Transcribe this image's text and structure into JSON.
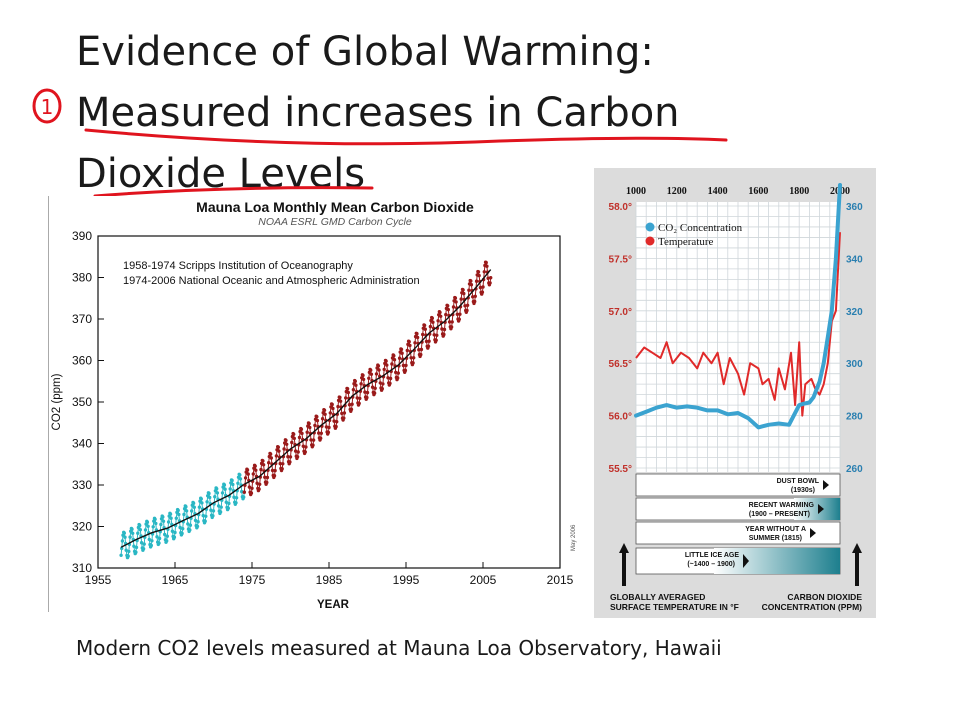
{
  "slide": {
    "title_line1": "Evidence of Global Warming:",
    "title_line2": "Measured increases in Carbon",
    "title_line3": "Dioxide Levels",
    "annotation_number": "1",
    "caption": "Modern CO2 levels measured at Mauna Loa Observatory, Hawaii"
  },
  "colors": {
    "annotation_red": "#e0141e",
    "scripps_series": "#2ab7c4",
    "noaa_series": "#9a1a1a",
    "co2_line": "#3ba3d0",
    "temp_line": "#e02a2a",
    "right_axis_text": "#c0302a",
    "right_axis_blue": "#2a7fb0"
  },
  "chart_data": [
    {
      "type": "line",
      "title": "Mauna Loa Monthly Mean Carbon Dioxide",
      "subtitle": "NOAA ESRL GMD Carbon Cycle",
      "xlabel": "YEAR",
      "ylabel": "CO2 (ppm)",
      "xlim": [
        1955,
        2015
      ],
      "ylim": [
        310,
        390
      ],
      "x_ticks": [
        1955,
        1965,
        1975,
        1985,
        1995,
        2005,
        2015
      ],
      "y_ticks": [
        310,
        320,
        330,
        340,
        350,
        360,
        370,
        380,
        390
      ],
      "annotations": [
        "1958-1974 Scripps Institution of Oceanography",
        "1974-2006 National Oceanic and Atmospheric Administration"
      ],
      "side_note": "May 2006",
      "grid": false,
      "series": [
        {
          "x": [
            1958,
            1960,
            1962,
            1964,
            1966,
            1968,
            1970,
            1972,
            1974
          ],
          "values": [
            315.0,
            316.9,
            318.5,
            319.6,
            321.4,
            323.1,
            325.7,
            327.5,
            330.2
          ]
        },
        {
          "x": [
            1974,
            1976,
            1978,
            1980,
            1982,
            1984,
            1986,
            1988,
            1990,
            1992,
            1994,
            1996,
            1998,
            2000,
            2002,
            2004,
            2006
          ],
          "values": [
            330.2,
            332.1,
            335.4,
            338.7,
            341.1,
            344.4,
            347.2,
            351.4,
            354.2,
            356.3,
            358.9,
            362.6,
            366.6,
            369.4,
            373.1,
            377.4,
            381.9
          ]
        }
      ],
      "seasonal_amplitude_ppm": 3.3
    },
    {
      "type": "line",
      "xlim": [
        1000,
        2000
      ],
      "x_ticks": [
        1000,
        1200,
        1400,
        1600,
        1800,
        2000
      ],
      "left_axis": {
        "label": "GLOBALLY AVERAGED SURFACE TEMPERATURE IN °F",
        "ticks": [
          "55.5°",
          "56.0°",
          "56.5°",
          "57.0°",
          "57.5°",
          "58.0°"
        ],
        "ylim": [
          55.5,
          58.0
        ]
      },
      "right_axis": {
        "label": "CARBON DIOXIDE CONCENTRATION (PPM)",
        "ticks": [
          "260",
          "280",
          "300",
          "320",
          "340",
          "360"
        ],
        "ylim": [
          260,
          360
        ]
      },
      "legend": {
        "placement": "top-left",
        "entries": [
          "CO₂ Concentration",
          "Temperature"
        ]
      },
      "series": [
        {
          "name": "CO₂ Concentration",
          "axis": "right",
          "x": [
            1000,
            1050,
            1100,
            1150,
            1200,
            1250,
            1300,
            1350,
            1400,
            1450,
            1500,
            1550,
            1600,
            1650,
            1700,
            1750,
            1800,
            1820,
            1850,
            1870,
            1900,
            1920,
            1940,
            1960,
            1980,
            2000
          ],
          "values": [
            280,
            281.5,
            283,
            284,
            283,
            283.5,
            283,
            282,
            282,
            280.5,
            281,
            279,
            275.5,
            276.5,
            277,
            276.5,
            284,
            284.5,
            285,
            287,
            293,
            300,
            310,
            320,
            340,
            368
          ]
        },
        {
          "name": "Temperature",
          "axis": "left",
          "x": [
            1000,
            1040,
            1080,
            1120,
            1150,
            1180,
            1220,
            1260,
            1300,
            1330,
            1370,
            1400,
            1430,
            1460,
            1500,
            1530,
            1560,
            1600,
            1620,
            1650,
            1680,
            1700,
            1730,
            1760,
            1780,
            1800,
            1815,
            1830,
            1860,
            1880,
            1900,
            1920,
            1940,
            1960,
            1980,
            2000
          ],
          "values": [
            56.55,
            56.65,
            56.6,
            56.55,
            56.7,
            56.5,
            56.6,
            56.55,
            56.45,
            56.6,
            56.5,
            56.6,
            56.3,
            56.55,
            56.4,
            56.2,
            56.5,
            56.45,
            56.3,
            56.35,
            56.15,
            56.45,
            56.25,
            56.6,
            56.1,
            56.7,
            56.0,
            56.3,
            56.35,
            56.25,
            56.2,
            56.3,
            56.5,
            56.9,
            57.0,
            57.75
          ]
        }
      ],
      "periods": [
        {
          "label_line1": "DUST BOWL",
          "label_line2": "(1930s)"
        },
        {
          "label_line1": "RECENT WARMING",
          "label_line2": "(1900 – PRESENT)"
        },
        {
          "label_line1": "YEAR WITHOUT A",
          "label_line2": "SUMMER (1815)"
        },
        {
          "label_line1": "LITTLE ICE AGE",
          "label_line2": "(~1400 – 1900)"
        }
      ]
    }
  ]
}
